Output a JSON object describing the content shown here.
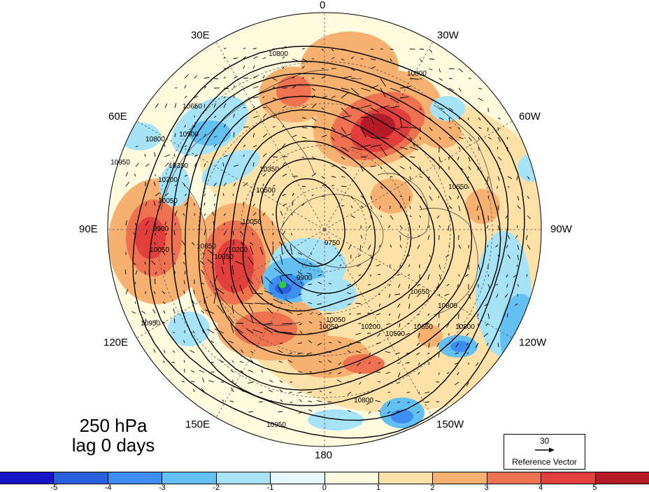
{
  "longitude_labels": {
    "lon_0": "0",
    "lon_30w": "30W",
    "lon_60w": "60W",
    "lon_90w": "90W",
    "lon_120w": "120W",
    "lon_150w": "150W",
    "lon_180": "180",
    "lon_150e": "150E",
    "lon_120e": "120E",
    "lon_90e": "90E",
    "lon_60e": "60E",
    "lon_30e": "30E"
  },
  "contour_labels": [
    "10800",
    "10800",
    "10650",
    "10650",
    "10500",
    "10350",
    "10200",
    "10050",
    "9900",
    "10050",
    "10950",
    "10800",
    "10650",
    "10950",
    "10350",
    "10500",
    "10050",
    "10200",
    "10350",
    "10650",
    "10800",
    "10050",
    "10800",
    "9750",
    "9900",
    "10050",
    "10200",
    "10500",
    "10650",
    "10800",
    "10950"
  ],
  "caption": {
    "level": "250 hPa",
    "lag": "lag 0 days"
  },
  "reference_vector": {
    "magnitude": "30",
    "label": "Reference Vector"
  },
  "colorbar": {
    "colors": [
      "#1616c8",
      "#2a5fe0",
      "#3d8ef0",
      "#63c0f2",
      "#a7e3f6",
      "#e6f8fd",
      "#fffbdf",
      "#fde1a6",
      "#f6b070",
      "#ee7150",
      "#e23e3c",
      "#b51a26"
    ],
    "ticks": [
      "-5",
      "-4",
      "-3",
      "-2",
      "-1",
      "0",
      "1",
      "2",
      "3",
      "4",
      "5"
    ]
  },
  "highlight_marker_color": "#33cc33",
  "contour_color": "#000000"
}
